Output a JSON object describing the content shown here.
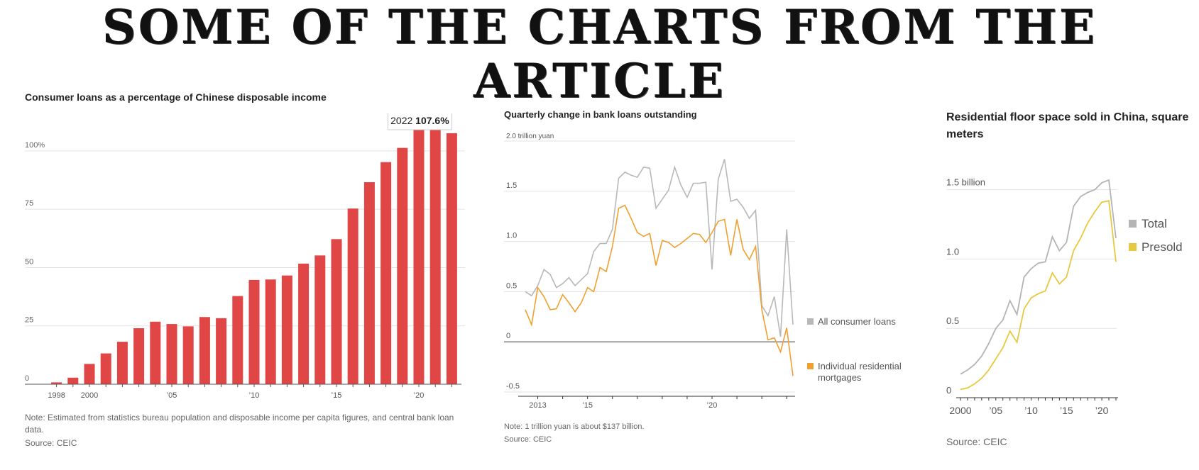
{
  "banner": {
    "title": "SOME OF THE CHARTS FROM THE ARTICLE"
  },
  "chart_data": [
    {
      "type": "bar",
      "title": "Consumer loans as a percentage of Chinese disposable income",
      "x": [
        1998,
        1999,
        2000,
        2001,
        2002,
        2003,
        2004,
        2005,
        2006,
        2007,
        2008,
        2009,
        2010,
        2011,
        2012,
        2013,
        2014,
        2015,
        2016,
        2017,
        2018,
        2019,
        2020,
        2021,
        2022
      ],
      "values": [
        0.8,
        2.8,
        8.7,
        13.2,
        18.2,
        24.0,
        26.8,
        25.8,
        24.8,
        28.8,
        28.3,
        37.8,
        44.7,
        44.9,
        46.6,
        51.7,
        55.2,
        62.2,
        75.3,
        86.6,
        95.2,
        101.3,
        109.0,
        111.0,
        107.6
      ],
      "x_tick_labels": [
        {
          "x": 1998,
          "label": "1998"
        },
        {
          "x": 2000,
          "label": "2000"
        },
        {
          "x": 2005,
          "label": "’05"
        },
        {
          "x": 2010,
          "label": "’10"
        },
        {
          "x": 2015,
          "label": "’15"
        },
        {
          "x": 2020,
          "label": "’20"
        }
      ],
      "y_ticks": [
        {
          "v": 0,
          "label": "0"
        },
        {
          "v": 25,
          "label": "25"
        },
        {
          "v": 50,
          "label": "50"
        },
        {
          "v": 75,
          "label": "75"
        },
        {
          "v": 100,
          "label": "100%"
        }
      ],
      "ylim": [
        0,
        110
      ],
      "annotation": {
        "year": "2022",
        "value": "107.6%"
      },
      "bar_color": "#e04646",
      "note": "Note: Estimated from statistics bureau population and disposable income per capita figures, and central bank loan data.",
      "source": "Source: CEIC"
    },
    {
      "type": "line",
      "title": "Quarterly change in bank loans outstanding",
      "y_unit_label": "2.0 trillion yuan",
      "x_start": 2012.5,
      "x_step": 0.25,
      "series": [
        {
          "name": "All consumer loans",
          "color": "#b8b8b8",
          "values": [
            0.5,
            0.46,
            0.56,
            0.72,
            0.67,
            0.54,
            0.58,
            0.64,
            0.56,
            0.62,
            0.68,
            0.9,
            0.98,
            0.98,
            1.12,
            1.63,
            1.69,
            1.66,
            1.64,
            1.74,
            1.73,
            1.33,
            1.42,
            1.51,
            1.74,
            1.56,
            1.44,
            1.58,
            1.58,
            1.59,
            0.72,
            1.62,
            1.82,
            1.4,
            1.42,
            1.34,
            1.23,
            1.31,
            0.36,
            0.26,
            0.45,
            0.05,
            1.12,
            0.17
          ]
        },
        {
          "name": "Individual residential mortgages",
          "color": "#f0a030",
          "values": [
            0.32,
            0.17,
            0.54,
            0.45,
            0.32,
            0.33,
            0.47,
            0.39,
            0.3,
            0.39,
            0.54,
            0.5,
            0.74,
            0.7,
            0.95,
            1.33,
            1.36,
            1.23,
            1.09,
            1.05,
            1.08,
            0.76,
            1.01,
            0.99,
            0.94,
            0.98,
            1.03,
            1.08,
            1.07,
            0.99,
            1.09,
            1.2,
            1.22,
            0.86,
            1.22,
            0.92,
            0.82,
            0.95,
            0.32,
            0.02,
            0.04,
            -0.1,
            0.14,
            -0.34
          ]
        }
      ],
      "x_tick_labels": [
        {
          "x": 2013,
          "label": "2013"
        },
        {
          "x": 2015,
          "label": "’15"
        },
        {
          "x": 2020,
          "label": "’20"
        }
      ],
      "y_ticks": [
        {
          "v": 2.0,
          "label": ""
        },
        {
          "v": 1.5,
          "label": "1.5"
        },
        {
          "v": 1.0,
          "label": "1.0"
        },
        {
          "v": 0.5,
          "label": "0.5"
        },
        {
          "v": 0,
          "label": "0"
        },
        {
          "v": -0.5,
          "label": "-0.5"
        }
      ],
      "ylim": [
        -0.5,
        2.0
      ],
      "note": "Note: 1 trillion yuan is about $137 billion.",
      "source": "Source: CEIC"
    },
    {
      "type": "line",
      "title": "Residential floor space sold in China, square meters",
      "y_unit_label": "1.5 billion",
      "x_start": 2000,
      "x_step": 1,
      "series": [
        {
          "name": "Total",
          "color": "#b4b4b4",
          "values": [
            0.17,
            0.2,
            0.24,
            0.3,
            0.39,
            0.5,
            0.56,
            0.7,
            0.6,
            0.87,
            0.93,
            0.97,
            0.98,
            1.16,
            1.06,
            1.12,
            1.38,
            1.45,
            1.48,
            1.5,
            1.55,
            1.57,
            1.15
          ]
        },
        {
          "name": "Presold",
          "color": "#e8c840",
          "values": [
            0.06,
            0.07,
            0.1,
            0.14,
            0.2,
            0.28,
            0.36,
            0.48,
            0.4,
            0.64,
            0.72,
            0.75,
            0.77,
            0.9,
            0.82,
            0.87,
            1.06,
            1.15,
            1.26,
            1.34,
            1.41,
            1.42,
            0.98
          ]
        }
      ],
      "x_tick_labels": [
        {
          "x": 2000,
          "label": "2000"
        },
        {
          "x": 2005,
          "label": "’05"
        },
        {
          "x": 2010,
          "label": "’10"
        },
        {
          "x": 2015,
          "label": "’15"
        },
        {
          "x": 2020,
          "label": "’20"
        }
      ],
      "y_ticks": [
        {
          "v": 1.5,
          "label": ""
        },
        {
          "v": 1.0,
          "label": "1.0"
        },
        {
          "v": 0.5,
          "label": "0.5"
        },
        {
          "v": 0,
          "label": "0"
        }
      ],
      "ylim": [
        0,
        1.6
      ],
      "source": "Source: CEIC"
    }
  ]
}
